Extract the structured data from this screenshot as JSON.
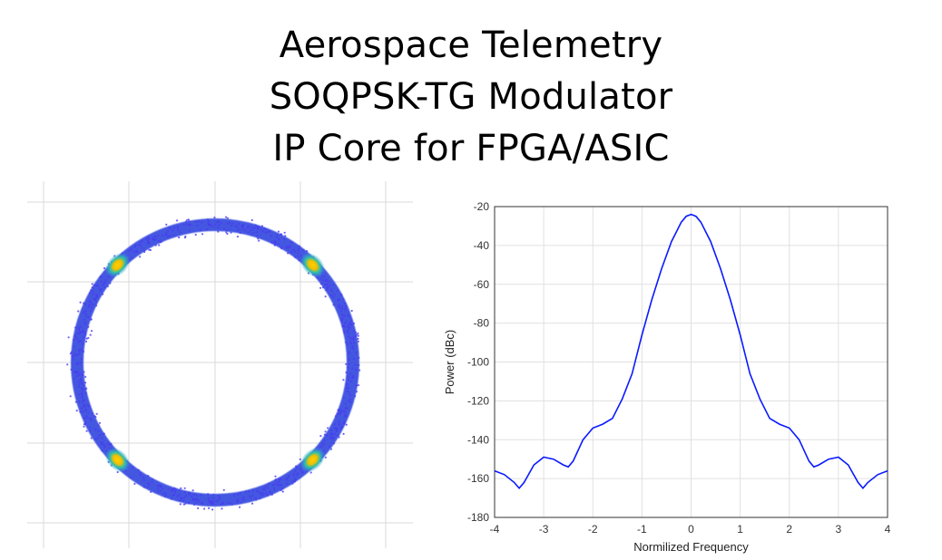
{
  "title": {
    "lines": [
      "Aerospace Telemetry",
      "SOQPSK-TG Modulator",
      "IP Core for FPGA/ASIC"
    ]
  },
  "chart_data": [
    {
      "type": "scatter",
      "description_kind": "constellation",
      "ring_radius": 1.0,
      "cluster_angles_deg": [
        45,
        135,
        225,
        315
      ],
      "grid": true,
      "colors": {
        "ring": "#3a4fe0",
        "cluster_mid": "#22b8b0",
        "cluster_core": "#f2c200"
      }
    },
    {
      "type": "line",
      "xlabel": "Normilized Frequency",
      "ylabel": "Power (dBc)",
      "xlim": [
        -4,
        4
      ],
      "ylim": [
        -180,
        -20
      ],
      "xticks": [
        "-4",
        "-3",
        "-2",
        "-1",
        "0",
        "1",
        "2",
        "3",
        "4"
      ],
      "yticks": [
        "-20",
        "-40",
        "-60",
        "-80",
        "-100",
        "-120",
        "-140",
        "-160",
        "-180"
      ],
      "grid": true,
      "series": [
        {
          "color": "#0a1aff",
          "x": [
            -4.0,
            -3.8,
            -3.6,
            -3.5,
            -3.4,
            -3.2,
            -3.0,
            -2.8,
            -2.6,
            -2.5,
            -2.4,
            -2.2,
            -2.0,
            -1.8,
            -1.6,
            -1.4,
            -1.2,
            -1.0,
            -0.8,
            -0.6,
            -0.4,
            -0.2,
            -0.1,
            0.0,
            0.1,
            0.2,
            0.4,
            0.6,
            0.8,
            1.0,
            1.2,
            1.4,
            1.6,
            1.8,
            2.0,
            2.2,
            2.4,
            2.5,
            2.6,
            2.8,
            3.0,
            3.2,
            3.4,
            3.5,
            3.6,
            3.8,
            4.0
          ],
          "y": [
            -156,
            -158,
            -162,
            -165,
            -162,
            -153,
            -149,
            -150,
            -153,
            -154,
            -151,
            -140,
            -134,
            -132,
            -129,
            -119,
            -106,
            -86,
            -68,
            -52,
            -38,
            -28,
            -25,
            -24,
            -25,
            -28,
            -38,
            -52,
            -68,
            -86,
            -106,
            -119,
            -129,
            -132,
            -134,
            -140,
            -151,
            -154,
            -153,
            -150,
            -149,
            -153,
            -162,
            -165,
            -162,
            -158,
            -156
          ]
        }
      ]
    }
  ]
}
